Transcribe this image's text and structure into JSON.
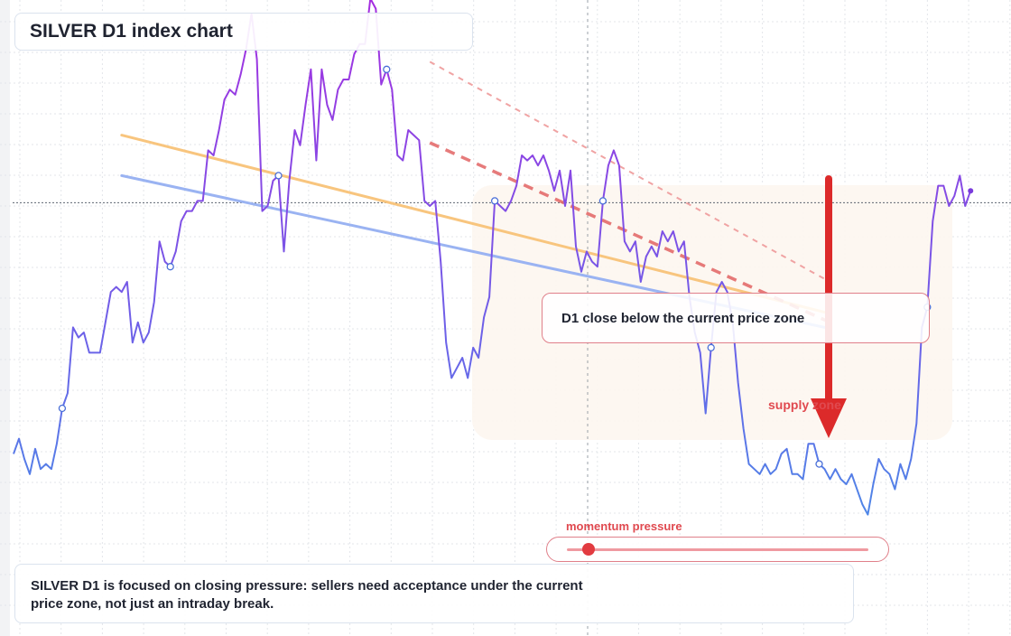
{
  "title": "SILVER D1 index chart",
  "callout": "D1 close below the current price zone",
  "zone_label": "supply zone",
  "gauge": {
    "label": "momentum pressure",
    "level": 0.07
  },
  "note": "SILVER D1 is focused on closing pressure: sellers need acceptance under the current price zone, not just an intraday break.",
  "colors": {
    "price_low": "#3aa0e6",
    "price_mid": "#6a63e8",
    "price_high": "#a52ee0",
    "orange_trend": "#f8c57e",
    "blue_trend": "#9ab3f2",
    "resistance": "#e26464",
    "arrow": "#dc2a2a",
    "zone_fill": "#fdf6f0"
  },
  "chart_data": {
    "type": "line",
    "y": [
      3.6,
      3.9,
      3.5,
      3.2,
      3.7,
      3.3,
      3.4,
      3.3,
      3.8,
      4.5,
      4.8,
      6.1,
      5.9,
      6.0,
      5.6,
      5.6,
      5.6,
      6.2,
      6.8,
      6.9,
      6.8,
      7.0,
      5.8,
      6.2,
      5.8,
      6.0,
      6.6,
      7.8,
      7.4,
      7.3,
      7.6,
      8.2,
      8.4,
      8.4,
      8.6,
      8.6,
      9.6,
      9.5,
      10.0,
      10.6,
      10.8,
      10.7,
      11.1,
      11.6,
      12.3,
      11.4,
      8.4,
      8.5,
      9.0,
      9.1,
      7.6,
      9.0,
      10.0,
      9.7,
      10.5,
      11.2,
      9.4,
      11.2,
      10.5,
      10.2,
      10.8,
      11.0,
      11.0,
      11.5,
      11.7,
      11.7,
      12.6,
      12.4,
      10.9,
      11.2,
      10.8,
      9.5,
      9.4,
      10.0,
      9.9,
      9.8,
      8.6,
      8.5,
      8.6,
      7.4,
      5.8,
      5.1,
      5.3,
      5.5,
      5.1,
      5.7,
      5.5,
      6.3,
      6.7,
      8.6,
      8.5,
      8.4,
      8.6,
      8.9,
      9.5,
      9.4,
      9.5,
      9.3,
      9.5,
      9.2,
      8.8,
      9.2,
      8.5,
      9.2,
      7.7,
      7.2,
      7.6,
      7.4,
      7.3,
      8.6,
      9.3,
      9.6,
      9.3,
      7.8,
      7.6,
      7.8,
      7.0,
      7.5,
      7.7,
      7.5,
      8.0,
      7.8,
      8.0,
      7.6,
      7.8,
      6.7,
      6.0,
      5.6,
      4.4,
      5.7,
      6.8,
      7.0,
      6.8,
      6.2,
      5.0,
      4.1,
      3.4,
      3.3,
      3.2,
      3.4,
      3.2,
      3.3,
      3.6,
      3.7,
      3.2,
      3.2,
      3.1,
      3.8,
      3.8,
      3.4,
      3.3,
      3.1,
      3.3,
      3.1,
      3.0,
      3.2,
      2.9,
      2.6,
      2.4,
      3.0,
      3.5,
      3.3,
      3.2,
      2.9,
      3.4,
      3.1,
      3.5,
      4.2,
      6.1,
      6.5,
      8.2,
      8.9,
      8.9,
      8.5,
      8.7,
      9.1,
      8.5,
      8.8
    ],
    "trendlines": [
      {
        "name": "orange",
        "from": [
          20,
          9.9
        ],
        "to": [
          150,
          6.4
        ]
      },
      {
        "name": "blue",
        "from": [
          20,
          9.1
        ],
        "to": [
          150,
          6.1
        ]
      }
    ],
    "resistance_line": {
      "from": [
        77,
        9.75
      ],
      "to": [
        151,
        6.2
      ]
    },
    "upper_channel": {
      "from": [
        77,
        11.35
      ],
      "to": [
        151,
        7.0
      ]
    },
    "current_price": 8.6,
    "grid": true
  }
}
